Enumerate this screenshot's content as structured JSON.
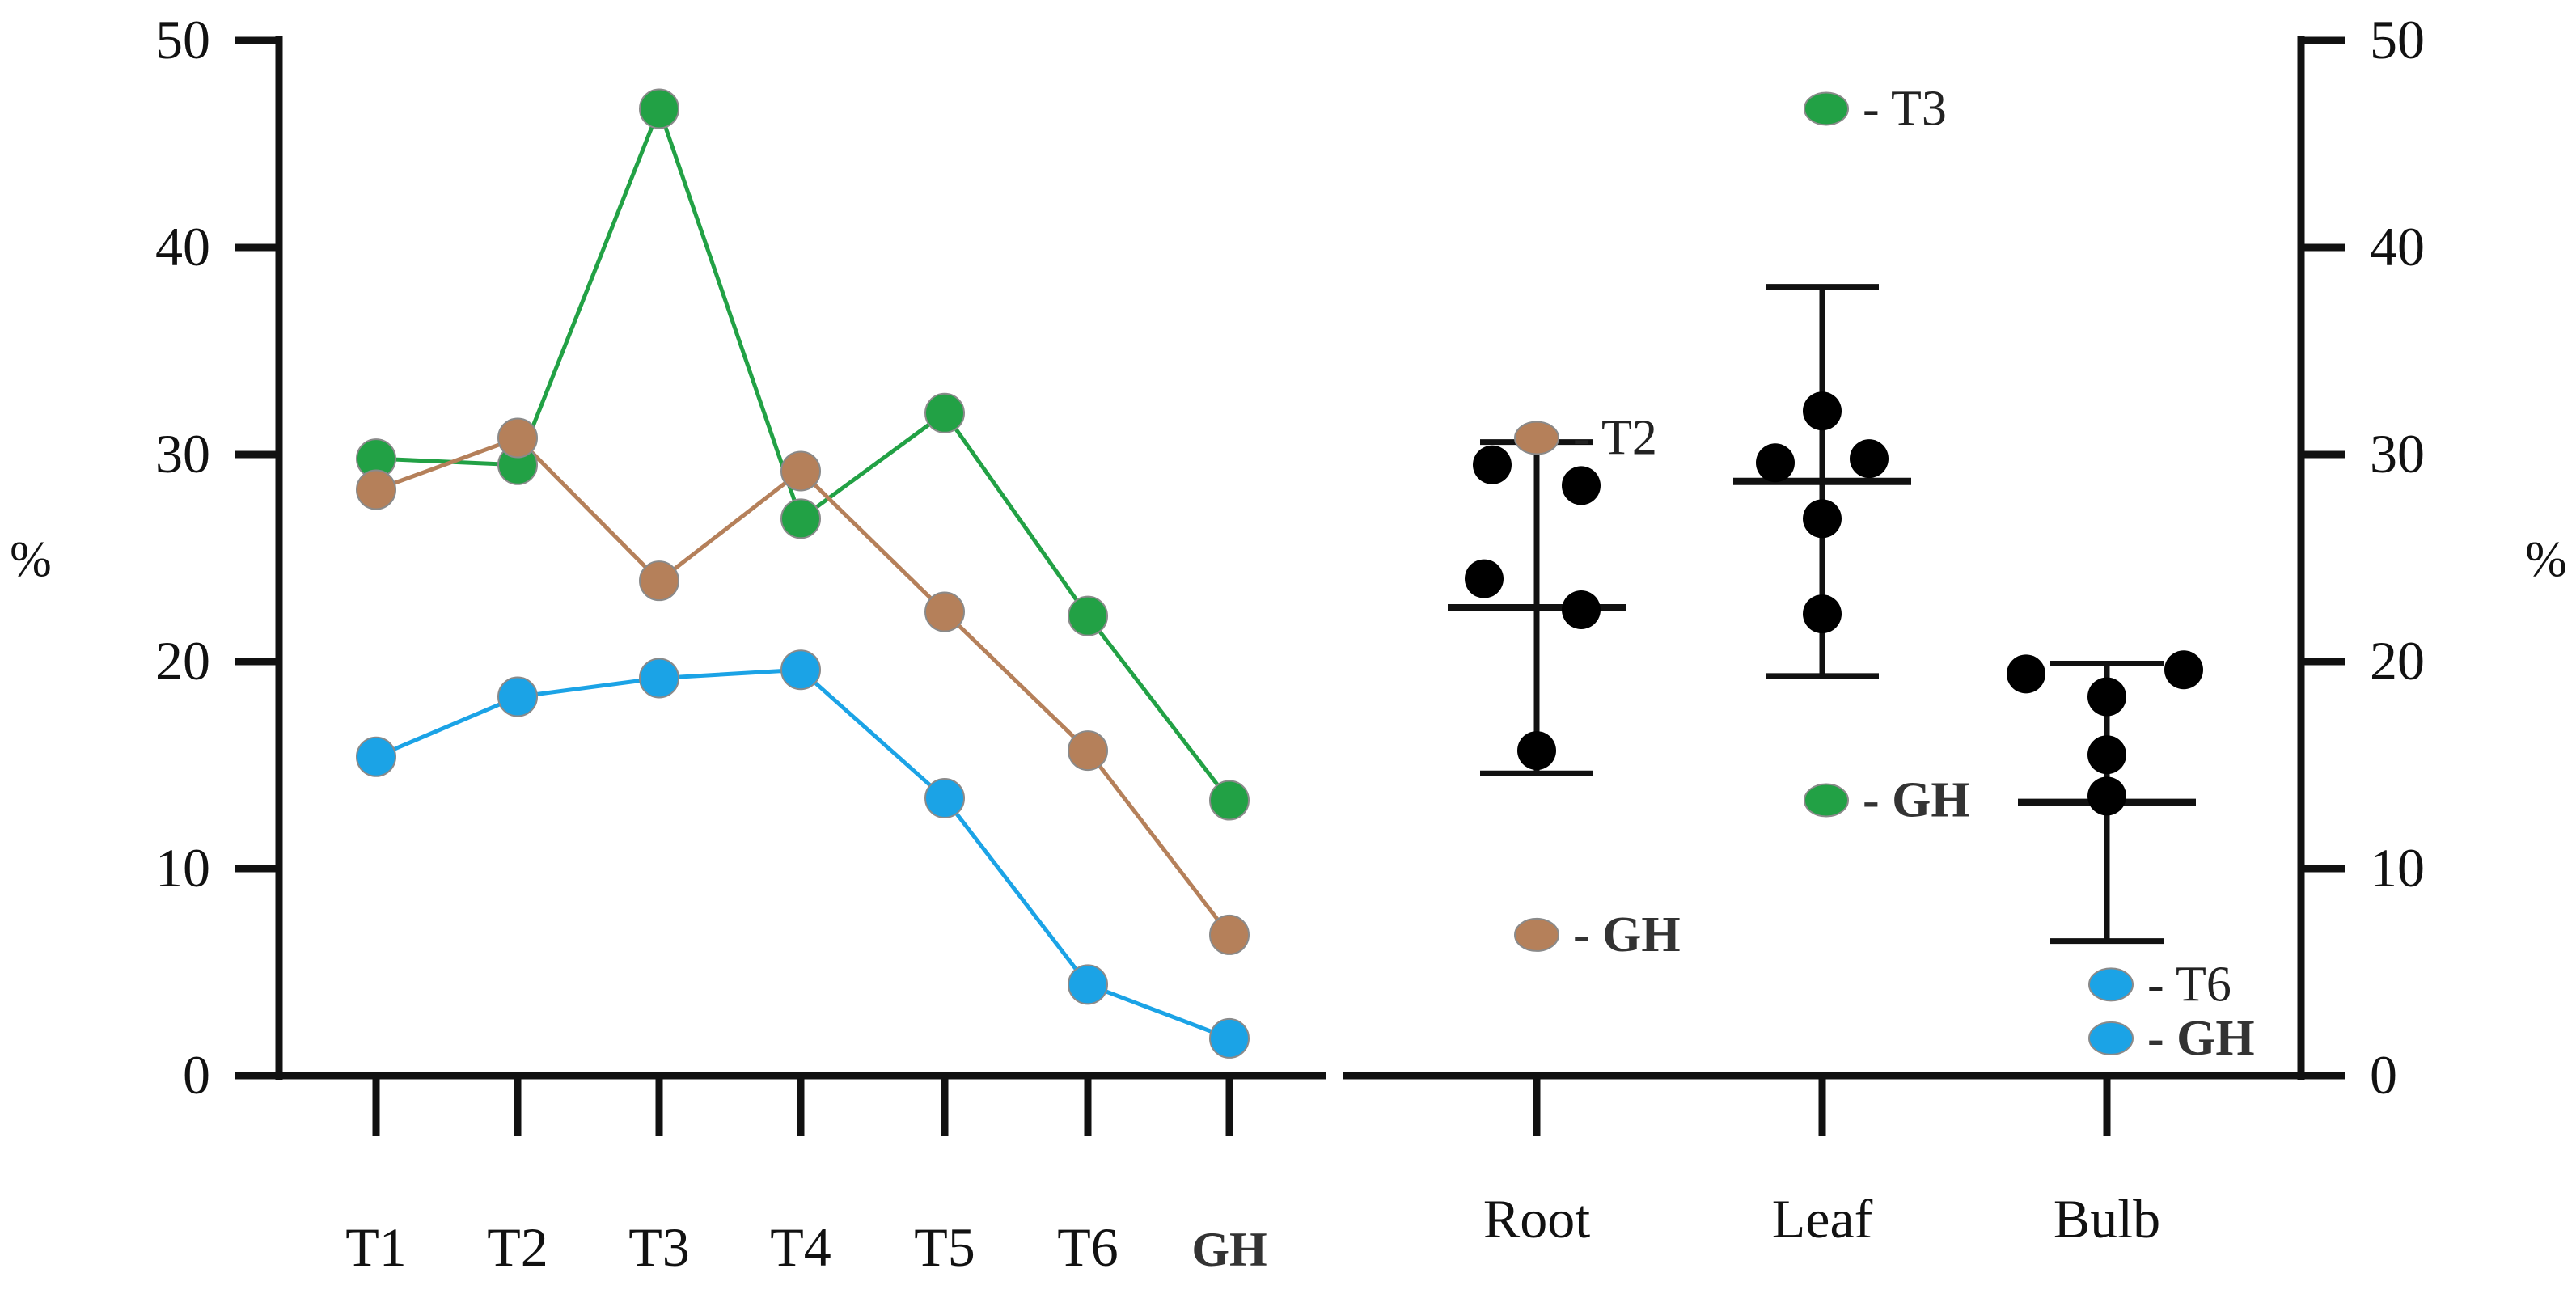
{
  "chart_data": [
    {
      "type": "line",
      "name": "Left panel",
      "categories": [
        "T1",
        "T2",
        "T3",
        "T4",
        "T5",
        "T6",
        "GH"
      ],
      "series": [
        {
          "name": "green",
          "color": "#22a145",
          "values": [
            29.8,
            29.5,
            46.7,
            26.9,
            32.0,
            22.2,
            13.3
          ]
        },
        {
          "name": "brown",
          "color": "#b5805a",
          "values": [
            28.3,
            30.8,
            23.9,
            29.2,
            22.4,
            15.7,
            6.8
          ]
        },
        {
          "name": "blue",
          "color": "#1ba3e6",
          "values": [
            15.4,
            18.3,
            19.2,
            19.6,
            13.4,
            4.4,
            1.8
          ]
        }
      ],
      "ylabel": "%",
      "ylim": [
        0,
        50
      ],
      "yticks": [
        "0",
        "10",
        "20",
        "30",
        "40",
        "50"
      ]
    },
    {
      "type": "scatter",
      "name": "Right panel",
      "categories": [
        "Root",
        "Leaf",
        "Bulb"
      ],
      "groups": [
        {
          "category": "Root",
          "points": [
            29.5,
            28.5,
            24.0,
            22.5,
            15.7
          ],
          "mean": 22.6,
          "upper": 30.6,
          "lower": 14.6
        },
        {
          "category": "Leaf",
          "points": [
            32.1,
            29.6,
            29.8,
            26.9,
            22.3
          ],
          "mean": 28.7,
          "upper": 38.1,
          "lower": 19.3
        },
        {
          "category": "Bulb",
          "points": [
            19.4,
            19.6,
            18.3,
            15.5,
            13.5
          ],
          "mean": 13.2,
          "upper": 19.9,
          "lower": 6.5
        }
      ],
      "annotations": [
        {
          "category": "Root",
          "color": "#b5805a",
          "value": 30.8,
          "text": "- T2"
        },
        {
          "category": "Root",
          "color": "#b5805a",
          "value": 6.8,
          "text": "- GH"
        },
        {
          "category": "Leaf",
          "color": "#22a145",
          "value": 46.7,
          "text": "- T3"
        },
        {
          "category": "Leaf",
          "color": "#22a145",
          "value": 13.3,
          "text": "- GH"
        },
        {
          "category": "Bulb",
          "color": "#1ba3e6",
          "value": 4.4,
          "text": "- T6"
        },
        {
          "category": "Bulb",
          "color": "#1ba3e6",
          "value": 1.8,
          "text": "- GH"
        }
      ],
      "ylabel": "%",
      "ylim": [
        0,
        50
      ],
      "yticks": [
        "0",
        "10",
        "20",
        "30",
        "40",
        "50"
      ]
    }
  ]
}
